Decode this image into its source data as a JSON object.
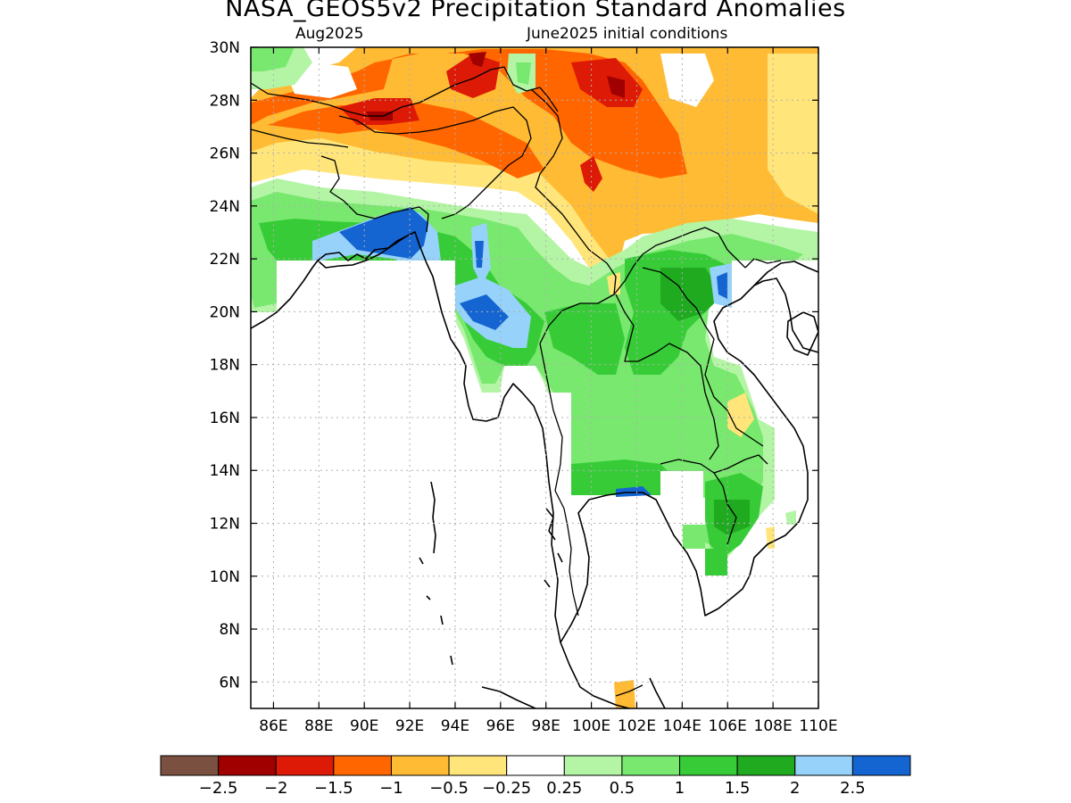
{
  "title": "NASA_GEOS5v2 Precipitation Standard Anomalies",
  "subtitle_left": "Aug2025",
  "subtitle_right": "June2025 initial conditions",
  "map": {
    "lon_range": [
      85,
      110
    ],
    "lat_range": [
      5,
      30
    ],
    "lon_ticks": [
      86,
      88,
      90,
      92,
      94,
      96,
      98,
      100,
      102,
      104,
      106,
      108,
      110
    ],
    "lat_ticks": [
      6,
      8,
      10,
      12,
      14,
      16,
      18,
      20,
      22,
      24,
      26,
      28,
      30
    ],
    "lon_tick_labels": [
      "86E",
      "88E",
      "90E",
      "92E",
      "94E",
      "96E",
      "98E",
      "100E",
      "102E",
      "104E",
      "106E",
      "108E",
      "110E"
    ],
    "lat_tick_labels": [
      "6N",
      "8N",
      "10N",
      "12N",
      "14N",
      "16N",
      "18N",
      "20N",
      "22N",
      "24N",
      "26N",
      "28N",
      "30N"
    ],
    "gridlines": "dotted",
    "legend_position": "bottom"
  },
  "colorbar": {
    "colors": [
      "#7a5040",
      "#a00000",
      "#dc1a06",
      "#ff6600",
      "#ffbb33",
      "#ffe57a",
      "#ffffff",
      "#b3f5a5",
      "#78e86e",
      "#37cc37",
      "#20aa20",
      "#96d2fa",
      "#1464d2"
    ],
    "labels": [
      "−2.5",
      "−2",
      "−1.5",
      "−1",
      "−0.5",
      "−0.25",
      "0.25",
      "0.5",
      "1",
      "1.5",
      "2",
      "2.5"
    ]
  },
  "chart_data": {
    "type": "heatmap",
    "title": "NASA_GEOS5v2 Precipitation Standard Anomalies",
    "xlabel": "",
    "ylabel": "",
    "xlim": [
      85,
      110
    ],
    "ylim": [
      5,
      30
    ],
    "levels": [
      -2.5,
      -2,
      -1.5,
      -1,
      -0.5,
      -0.25,
      0.25,
      0.5,
      1,
      1.5,
      2,
      2.5
    ],
    "regions": [
      {
        "name": "",
        "lon": [
          85,
          110
        ],
        "lat": [
          25,
          30
        ],
        "value": -1
      },
      {
        "name": "",
        "lon": [
          99,
          102
        ],
        "lat": [
          28,
          30
        ],
        "value": -1.5
      },
      {
        "name": "",
        "lon": [
          88,
          92
        ],
        "lat": [
          27,
          28.5
        ],
        "value": -1.5
      },
      {
        "name": "",
        "lon": [
          94,
          96
        ],
        "lat": [
          28,
          30
        ],
        "value": -1.5
      },
      {
        "name": "",
        "lon": [
          85,
          99
        ],
        "lat": [
          20,
          24.5
        ],
        "value": 1
      },
      {
        "name": "",
        "lon": [
          88,
          93
        ],
        "lat": [
          22,
          24
        ],
        "value": 2.5
      },
      {
        "name": "",
        "lon": [
          94,
          96
        ],
        "lat": [
          19,
          21
        ],
        "value": 2
      },
      {
        "name": "",
        "lon": [
          98,
          108
        ],
        "lat": [
          13,
          22
        ],
        "value": 1
      },
      {
        "name": "",
        "lon": [
          105,
          107
        ],
        "lat": [
          10,
          13
        ],
        "value": 1.5
      }
    ]
  }
}
